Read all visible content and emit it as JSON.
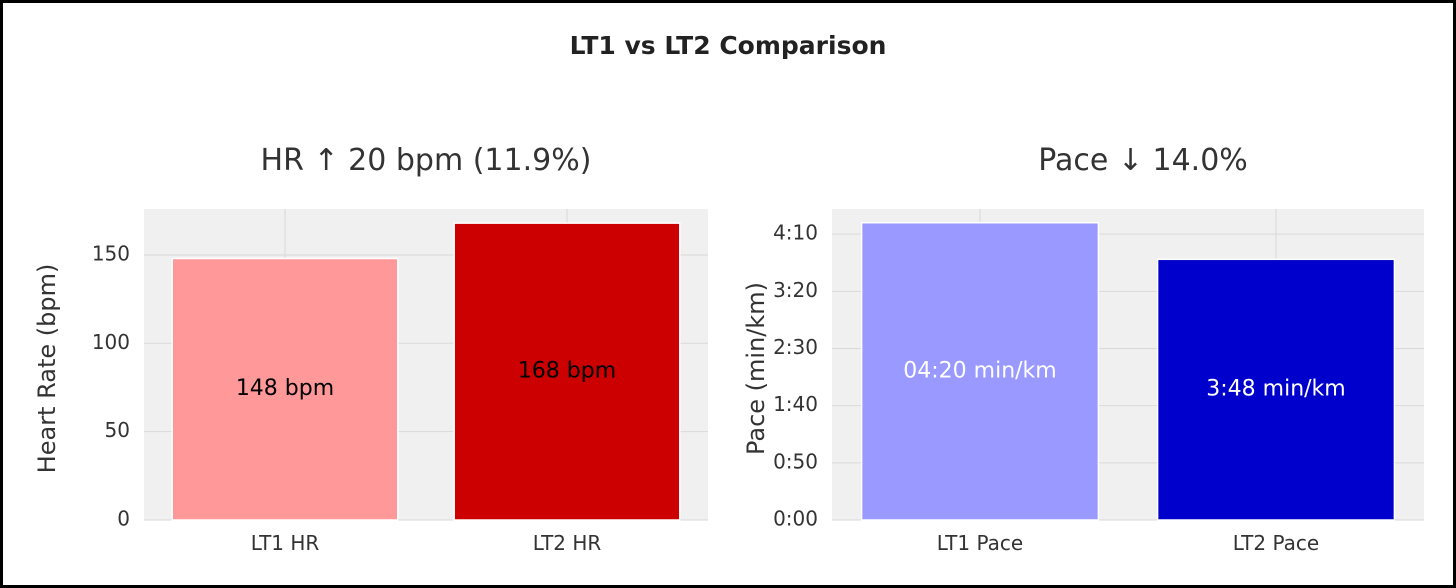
{
  "title": "LT1 vs LT2 Comparison",
  "chart_data": [
    {
      "type": "bar",
      "title": "HR ↑ 20 bpm (11.9%)",
      "xlabel": "",
      "ylabel": "Heart Rate (bpm)",
      "categories": [
        "LT1 HR",
        "LT2 HR"
      ],
      "values": [
        148,
        168
      ],
      "data_labels": [
        "148 bpm",
        "168 bpm"
      ],
      "colors": [
        "#ff9999",
        "#cc0000"
      ],
      "label_colors": [
        "#000000",
        "#000000"
      ],
      "ylim": [
        0,
        176
      ],
      "yticks": [
        0,
        50,
        100,
        150
      ],
      "ytick_labels": [
        "0",
        "50",
        "100",
        "150"
      ],
      "grid": true
    },
    {
      "type": "bar",
      "title": "Pace ↓ 14.0%",
      "xlabel": "",
      "ylabel": "Pace (min/km)",
      "categories": [
        "LT1 Pace",
        "LT2 Pace"
      ],
      "values": [
        260,
        228
      ],
      "value_unit": "seconds per km",
      "data_labels": [
        "04:20 min/km",
        "3:48 min/km"
      ],
      "colors": [
        "#9999ff",
        "#0000cc"
      ],
      "label_colors": [
        "#ffffff",
        "#ffffff"
      ],
      "ylim": [
        0,
        272
      ],
      "yticks": [
        0,
        50,
        100,
        150,
        200,
        250
      ],
      "ytick_labels": [
        "0:00",
        "0:50",
        "1:40",
        "2:30",
        "3:20",
        "4:10"
      ],
      "grid": true
    }
  ]
}
